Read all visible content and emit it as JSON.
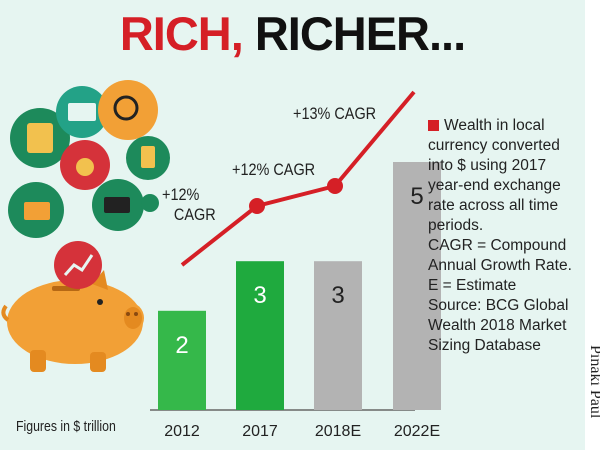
{
  "title": {
    "part1": "RICH,",
    "part2": "RICHER..."
  },
  "chart_data": {
    "type": "bar",
    "categories": [
      "2012",
      "2017",
      "2018E",
      "2022E"
    ],
    "values": [
      2,
      3,
      3,
      5
    ],
    "value_labels": [
      "2",
      "3",
      "3",
      "5"
    ],
    "bar_colors": [
      "#35b84a",
      "#1faa3e",
      "#b3b3b3",
      "#b3b3b3"
    ],
    "line_color": "#d51f26",
    "annotations": [
      {
        "line1": "+12%",
        "line2": "CAGR"
      },
      {
        "line1": "+12% CAGR"
      },
      {
        "line1": "+13% CAGR"
      }
    ],
    "unit_note": "Figures in $ trillion"
  },
  "legend": {
    "lines": [
      "Wealth in local",
      "currency converted",
      "into $ using 2017",
      "year-end exchange",
      "rate across all time",
      "periods.",
      "CAGR = Compound",
      "Annual Growth Rate.",
      "E = Estimate",
      "Source: BCG Global",
      "Wealth 2018 Market",
      "Sizing Database"
    ]
  },
  "credit": "Pinaki Paul",
  "colors": {
    "background": "#e6f5f1",
    "red": "#d51f26",
    "green": "#1faa3e",
    "gray": "#b3b3b3",
    "pig": "#f2a036"
  }
}
